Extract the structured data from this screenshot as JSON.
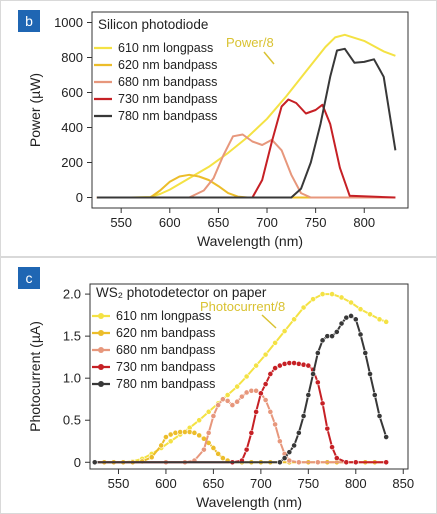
{
  "chart_data": [
    {
      "panel": "b",
      "type": "line",
      "title": "Silicon photodiode",
      "xlabel": "Wavelength (nm)",
      "ylabel": "Power (µW)",
      "xlim": [
        520,
        845
      ],
      "ylim": [
        -60,
        1060
      ],
      "xticks": [
        550,
        600,
        650,
        700,
        750,
        800
      ],
      "yticks": [
        0,
        200,
        400,
        600,
        800,
        1000
      ],
      "annotation": "Power/8",
      "legend_position": "top-left",
      "grid": false,
      "series": [
        {
          "name": "610 nm longpass",
          "color": "#f4e244",
          "markers": false,
          "x": [
            525,
            560,
            580,
            590,
            600,
            620,
            640,
            660,
            680,
            700,
            720,
            740,
            760,
            770,
            780,
            800,
            820,
            832
          ],
          "y": [
            0,
            0,
            3,
            20,
            45,
            110,
            175,
            255,
            345,
            450,
            580,
            720,
            860,
            915,
            930,
            895,
            835,
            810
          ]
        },
        {
          "name": "620 nm bandpass",
          "color": "#ecbd2a",
          "markers": false,
          "x": [
            525,
            580,
            590,
            600,
            610,
            620,
            630,
            640,
            650,
            660,
            670,
            680,
            832
          ],
          "y": [
            0,
            0,
            40,
            90,
            120,
            130,
            120,
            100,
            65,
            25,
            5,
            0,
            0
          ]
        },
        {
          "name": "680 nm bandpass",
          "color": "#e7977c",
          "markers": false,
          "x": [
            525,
            620,
            635,
            645,
            655,
            665,
            675,
            685,
            695,
            705,
            715,
            725,
            735,
            745,
            832
          ],
          "y": [
            0,
            0,
            40,
            110,
            240,
            350,
            360,
            320,
            300,
            330,
            270,
            130,
            25,
            0,
            0
          ]
        },
        {
          "name": "730 nm bandpass",
          "color": "#c62025",
          "markers": false,
          "x": [
            525,
            685,
            695,
            705,
            715,
            722,
            730,
            740,
            750,
            757,
            765,
            775,
            785,
            832
          ],
          "y": [
            0,
            0,
            100,
            320,
            520,
            560,
            540,
            480,
            500,
            530,
            420,
            170,
            10,
            0
          ]
        },
        {
          "name": "780 nm bandpass",
          "color": "#383838",
          "markers": false,
          "x": [
            525,
            725,
            735,
            745,
            755,
            765,
            772,
            780,
            790,
            800,
            810,
            820,
            832
          ],
          "y": [
            0,
            0,
            50,
            200,
            420,
            690,
            840,
            850,
            770,
            775,
            790,
            690,
            270
          ]
        }
      ]
    },
    {
      "panel": "c",
      "type": "line",
      "title": "WS₂ photodetector on paper",
      "xlabel": "Wavelength (nm)",
      "ylabel": "Photocurrent (µA)",
      "xlim": [
        520,
        855
      ],
      "ylim": [
        -0.08,
        2.12
      ],
      "xticks": [
        550,
        600,
        650,
        700,
        750,
        800,
        850
      ],
      "yticks": [
        0,
        0.5,
        1.0,
        1.5,
        2.0
      ],
      "ytick_labels": [
        "0",
        "0.5",
        "1.0",
        "1.5",
        "2.0"
      ],
      "annotation": "Photocurrent/8",
      "legend_position": "top-left",
      "grid": false,
      "series": [
        {
          "name": "610 nm longpass",
          "color": "#f4e244",
          "markers": true,
          "x": [
            525,
            535,
            545,
            555,
            565,
            575,
            585,
            595,
            605,
            615,
            625,
            635,
            645,
            655,
            665,
            675,
            685,
            695,
            705,
            715,
            725,
            735,
            745,
            755,
            765,
            775,
            785,
            795,
            805,
            815,
            825,
            832
          ],
          "y": [
            0,
            0,
            0,
            0,
            0.01,
            0.04,
            0.1,
            0.17,
            0.25,
            0.33,
            0.41,
            0.5,
            0.6,
            0.7,
            0.8,
            0.9,
            1.02,
            1.15,
            1.28,
            1.42,
            1.56,
            1.7,
            1.84,
            1.94,
            2.0,
            2.0,
            1.96,
            1.9,
            1.82,
            1.76,
            1.7,
            1.67
          ]
        },
        {
          "name": "620 nm bandpass",
          "color": "#ecbd2a",
          "markers": true,
          "x": [
            525,
            535,
            545,
            555,
            565,
            575,
            585,
            595,
            600,
            605,
            610,
            615,
            620,
            625,
            630,
            635,
            640,
            645,
            650,
            655,
            660,
            665,
            670,
            680,
            690,
            700,
            710,
            720,
            730,
            740,
            750,
            760,
            770,
            780,
            790,
            800,
            810,
            820,
            832
          ],
          "y": [
            0,
            0,
            0,
            0,
            0,
            0.01,
            0.06,
            0.2,
            0.3,
            0.33,
            0.35,
            0.36,
            0.36,
            0.36,
            0.35,
            0.32,
            0.28,
            0.23,
            0.17,
            0.1,
            0.05,
            0.02,
            0,
            0,
            0,
            0,
            0,
            0,
            0,
            0,
            0,
            0,
            0,
            0,
            0,
            0,
            0,
            0,
            0
          ]
        },
        {
          "name": "680 nm bandpass",
          "color": "#e7977c",
          "markers": true,
          "x": [
            525,
            600,
            620,
            630,
            640,
            645,
            650,
            655,
            660,
            665,
            670,
            675,
            680,
            685,
            690,
            695,
            700,
            705,
            710,
            715,
            720,
            725,
            730,
            740,
            760,
            800,
            832
          ],
          "y": [
            0,
            0,
            0,
            0.02,
            0.15,
            0.35,
            0.55,
            0.68,
            0.75,
            0.73,
            0.68,
            0.72,
            0.78,
            0.83,
            0.85,
            0.85,
            0.82,
            0.74,
            0.6,
            0.45,
            0.25,
            0.1,
            0.02,
            0,
            0,
            0,
            0
          ]
        },
        {
          "name": "730 nm bandpass",
          "color": "#c62025",
          "markers": true,
          "x": [
            525,
            670,
            680,
            685,
            690,
            695,
            700,
            705,
            710,
            715,
            720,
            725,
            730,
            735,
            740,
            745,
            750,
            755,
            760,
            765,
            770,
            775,
            780,
            790,
            800,
            832
          ],
          "y": [
            0,
            0,
            0.02,
            0.15,
            0.35,
            0.6,
            0.82,
            0.93,
            1.05,
            1.12,
            1.15,
            1.17,
            1.18,
            1.18,
            1.17,
            1.16,
            1.15,
            1.1,
            0.95,
            0.7,
            0.4,
            0.18,
            0.05,
            0,
            0,
            0
          ]
        },
        {
          "name": "780 nm bandpass",
          "color": "#383838",
          "markers": true,
          "x": [
            525,
            720,
            725,
            730,
            735,
            740,
            745,
            750,
            755,
            760,
            765,
            770,
            775,
            780,
            785,
            790,
            795,
            800,
            805,
            810,
            815,
            820,
            825,
            832
          ],
          "y": [
            0,
            0,
            0.05,
            0.12,
            0.2,
            0.35,
            0.55,
            0.8,
            1.05,
            1.3,
            1.45,
            1.5,
            1.5,
            1.55,
            1.65,
            1.72,
            1.74,
            1.7,
            1.52,
            1.3,
            1.05,
            0.8,
            0.55,
            0.3
          ]
        }
      ]
    }
  ]
}
